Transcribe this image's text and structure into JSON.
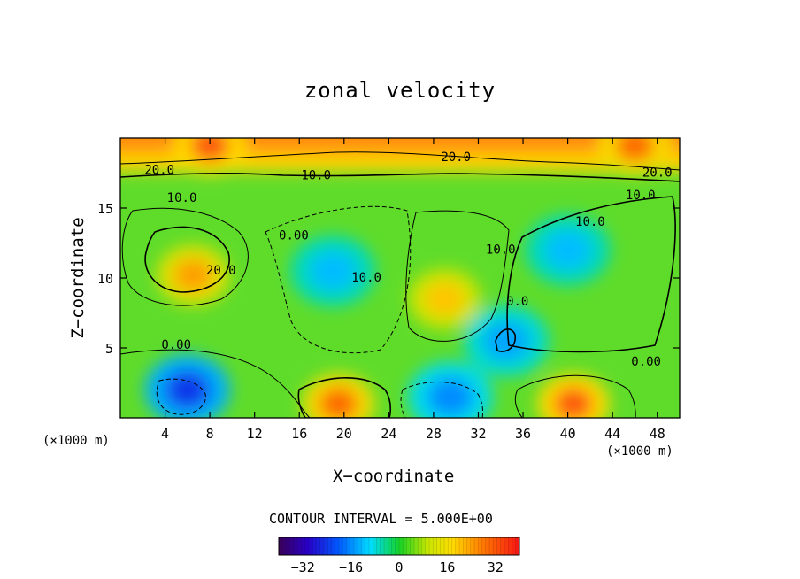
{
  "chart_data": {
    "type": "heatmap",
    "title": "zonal velocity",
    "xlabel": "X−coordinate",
    "ylabel": "Z−coordinate",
    "x_unit_left": "(×1000 m)",
    "x_unit_right": "(×1000 m)",
    "xlim": [
      0,
      50
    ],
    "ylim": [
      0,
      20
    ],
    "xticks": [
      4,
      8,
      12,
      16,
      20,
      24,
      28,
      32,
      36,
      40,
      44,
      48
    ],
    "yticks": [
      5,
      10,
      15
    ],
    "contour_interval_text": "CONTOUR INTERVAL = 5.000E+00",
    "contour_labels": [
      {
        "text": "20.0",
        "x": 3.5,
        "y": 17.7
      },
      {
        "text": "20.0",
        "x": 30.0,
        "y": 18.6
      },
      {
        "text": "20.0",
        "x": 48.0,
        "y": 17.5
      },
      {
        "text": "10.0",
        "x": 17.5,
        "y": 17.3
      },
      {
        "text": "10.0",
        "x": 46.5,
        "y": 15.9
      },
      {
        "text": "10.0",
        "x": 5.5,
        "y": 15.7
      },
      {
        "text": "10.0",
        "x": 42.0,
        "y": 14.0
      },
      {
        "text": "0.00",
        "x": 15.5,
        "y": 13.0
      },
      {
        "text": "20.0",
        "x": 9.0,
        "y": 10.5
      },
      {
        "text": "10.0",
        "x": 22.0,
        "y": 10.0
      },
      {
        "text": "10.0",
        "x": 34.0,
        "y": 12.0
      },
      {
        "text": "0.0",
        "x": 35.5,
        "y": 8.3
      },
      {
        "text": "0.00",
        "x": 5.0,
        "y": 5.2
      },
      {
        "text": "0.00",
        "x": 47.0,
        "y": 4.0
      }
    ],
    "field_extrema": [
      {
        "kind": "max",
        "x": 6.5,
        "y": 10.2,
        "value": 24
      },
      {
        "kind": "max",
        "x": 8.0,
        "y": 19.5,
        "value": 32
      },
      {
        "kind": "max",
        "x": 46.0,
        "y": 19.5,
        "value": 30
      },
      {
        "kind": "max",
        "x": 19.5,
        "y": 1.0,
        "value": 30
      },
      {
        "kind": "max",
        "x": 40.5,
        "y": 1.0,
        "value": 32
      },
      {
        "kind": "max",
        "x": 29.0,
        "y": 8.5,
        "value": 20
      },
      {
        "kind": "min",
        "x": 6.0,
        "y": 2.0,
        "value": -24
      },
      {
        "kind": "min",
        "x": 29.5,
        "y": 1.5,
        "value": -16
      },
      {
        "kind": "min",
        "x": 19.0,
        "y": 10.5,
        "value": -12
      },
      {
        "kind": "min",
        "x": 40.0,
        "y": 12.0,
        "value": -12
      },
      {
        "kind": "min",
        "x": 34.5,
        "y": 5.5,
        "value": -14
      }
    ],
    "colorbar": {
      "min": -40,
      "max": 40,
      "tick_values": [
        -32,
        -16,
        0,
        16,
        32
      ],
      "tick_labels": [
        "−32",
        "−16",
        "0",
        "16",
        "32"
      ]
    },
    "legend_placement": "bottom"
  }
}
